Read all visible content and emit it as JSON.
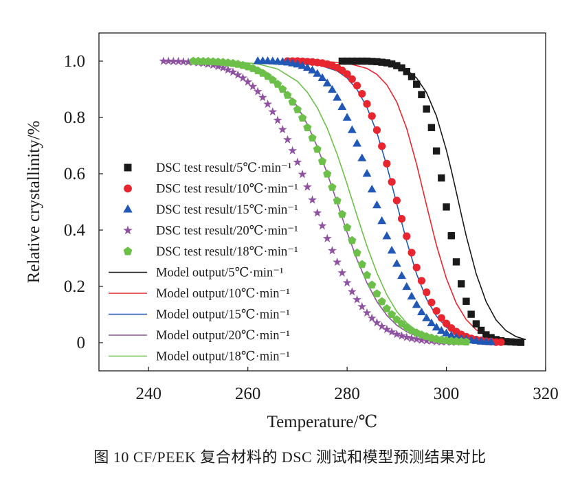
{
  "chart_data": {
    "type": "scatter",
    "xlabel": "Temperature/℃",
    "ylabel": "Relative crystallinity/%",
    "xlim": [
      230,
      320
    ],
    "ylim": [
      -0.1,
      1.1
    ],
    "xticks": [
      240,
      260,
      280,
      300,
      320
    ],
    "yticks": [
      0,
      0.2,
      0.4,
      0.6,
      0.8,
      1.0
    ],
    "ytick_labels": [
      "0",
      "0.2",
      "0.4",
      "0.6",
      "0.8",
      "1.0"
    ],
    "grid": false,
    "legend_position": "center-left",
    "series": [
      {
        "name": "DSC test result/5℃·min⁻¹",
        "kind": "marker",
        "marker": "square",
        "color": "#1a1a1a",
        "x": [
          279,
          280,
          281,
          282,
          283,
          284,
          285,
          286,
          287,
          288,
          289,
          290,
          291,
          292,
          293,
          294,
          295,
          296,
          297,
          298,
          299,
          300,
          301,
          302,
          303,
          304,
          305,
          306,
          307,
          308,
          309,
          310,
          311,
          312,
          313,
          314,
          315
        ],
        "y": [
          1.0,
          1.0,
          1.0,
          1.0,
          1.0,
          1.0,
          0.999,
          0.998,
          0.996,
          0.994,
          0.99,
          0.984,
          0.976,
          0.963,
          0.945,
          0.918,
          0.881,
          0.83,
          0.764,
          0.681,
          0.585,
          0.482,
          0.38,
          0.287,
          0.209,
          0.147,
          0.101,
          0.067,
          0.044,
          0.028,
          0.018,
          0.011,
          0.007,
          0.004,
          0.003,
          0.002,
          0.001
        ]
      },
      {
        "name": "DSC test result/10℃·min⁻¹",
        "kind": "marker",
        "marker": "circle",
        "color": "#e8262f",
        "x": [
          268,
          269,
          270,
          271,
          272,
          273,
          274,
          275,
          276,
          277,
          278,
          279,
          280,
          281,
          282,
          283,
          284,
          285,
          286,
          287,
          288,
          289,
          290,
          291,
          292,
          293,
          294,
          295,
          296,
          297,
          298,
          299,
          300,
          301,
          302,
          303,
          304,
          305,
          306,
          307,
          308,
          309,
          310,
          311
        ],
        "y": [
          1.0,
          1.0,
          1.0,
          0.999,
          0.998,
          0.997,
          0.995,
          0.993,
          0.989,
          0.984,
          0.977,
          0.967,
          0.954,
          0.936,
          0.913,
          0.884,
          0.848,
          0.805,
          0.755,
          0.698,
          0.636,
          0.571,
          0.505,
          0.44,
          0.378,
          0.32,
          0.267,
          0.22,
          0.179,
          0.143,
          0.113,
          0.088,
          0.068,
          0.052,
          0.039,
          0.029,
          0.021,
          0.015,
          0.011,
          0.008,
          0.005,
          0.004,
          0.002,
          0.002
        ]
      },
      {
        "name": "DSC test result/15℃·min⁻¹",
        "kind": "marker",
        "marker": "triangle",
        "color": "#2157b5",
        "x": [
          262,
          263,
          264,
          265,
          266,
          267,
          268,
          269,
          270,
          271,
          272,
          273,
          274,
          275,
          276,
          277,
          278,
          279,
          280,
          281,
          282,
          283,
          284,
          285,
          286,
          287,
          288,
          289,
          290,
          291,
          292,
          293,
          294,
          295,
          296,
          297,
          298,
          299,
          300,
          301,
          302,
          303,
          304,
          305,
          306,
          307,
          308,
          309
        ],
        "y": [
          1.0,
          1.0,
          1.0,
          0.999,
          0.998,
          0.997,
          0.995,
          0.992,
          0.988,
          0.983,
          0.976,
          0.967,
          0.955,
          0.94,
          0.921,
          0.898,
          0.87,
          0.837,
          0.799,
          0.755,
          0.707,
          0.655,
          0.6,
          0.544,
          0.488,
          0.432,
          0.378,
          0.327,
          0.28,
          0.237,
          0.198,
          0.164,
          0.134,
          0.108,
          0.087,
          0.069,
          0.054,
          0.042,
          0.033,
          0.025,
          0.019,
          0.014,
          0.011,
          0.008,
          0.006,
          0.004,
          0.003,
          0.002
        ]
      },
      {
        "name": "DSC test result/20℃·min⁻¹",
        "kind": "marker",
        "marker": "star",
        "color": "#8e52a1",
        "x": [
          243,
          244,
          245,
          246,
          247,
          248,
          249,
          250,
          251,
          252,
          253,
          254,
          255,
          256,
          257,
          258,
          259,
          260,
          261,
          262,
          263,
          264,
          265,
          266,
          267,
          268,
          269,
          270,
          271,
          272,
          273,
          274,
          275,
          276,
          277,
          278,
          279,
          280,
          281,
          282,
          283,
          284,
          285,
          286,
          287,
          288,
          289,
          290,
          291,
          292,
          293,
          294,
          295,
          296,
          297,
          298,
          299,
          300,
          301,
          302
        ],
        "y": [
          1.0,
          1.0,
          0.999,
          0.999,
          0.998,
          0.997,
          0.996,
          0.994,
          0.992,
          0.989,
          0.986,
          0.981,
          0.976,
          0.969,
          0.961,
          0.951,
          0.94,
          0.926,
          0.91,
          0.892,
          0.871,
          0.847,
          0.82,
          0.79,
          0.757,
          0.721,
          0.682,
          0.641,
          0.598,
          0.553,
          0.507,
          0.461,
          0.415,
          0.37,
          0.327,
          0.286,
          0.248,
          0.213,
          0.181,
          0.153,
          0.128,
          0.106,
          0.087,
          0.071,
          0.058,
          0.047,
          0.038,
          0.03,
          0.024,
          0.019,
          0.015,
          0.012,
          0.009,
          0.007,
          0.006,
          0.004,
          0.003,
          0.003,
          0.002,
          0.002
        ]
      },
      {
        "name": "DSC test result/18℃·min⁻¹",
        "kind": "marker",
        "marker": "pentagon",
        "color": "#6cc04a",
        "x": [
          249,
          250,
          251,
          252,
          253,
          254,
          255,
          256,
          257,
          258,
          259,
          260,
          261,
          262,
          263,
          264,
          265,
          266,
          267,
          268,
          269,
          270,
          271,
          272,
          273,
          274,
          275,
          276,
          277,
          278,
          279,
          280,
          281,
          282,
          283,
          284,
          285,
          286,
          287,
          288,
          289,
          290,
          291,
          292,
          293,
          294,
          295,
          296,
          297,
          298,
          299,
          300,
          301,
          302,
          303,
          304
        ],
        "y": [
          1.0,
          1.0,
          0.999,
          0.999,
          0.998,
          0.997,
          0.996,
          0.994,
          0.992,
          0.989,
          0.985,
          0.98,
          0.974,
          0.966,
          0.957,
          0.946,
          0.933,
          0.918,
          0.9,
          0.879,
          0.855,
          0.828,
          0.798,
          0.764,
          0.727,
          0.687,
          0.644,
          0.599,
          0.552,
          0.504,
          0.456,
          0.409,
          0.363,
          0.319,
          0.278,
          0.24,
          0.205,
          0.174,
          0.146,
          0.121,
          0.1,
          0.082,
          0.067,
          0.054,
          0.043,
          0.035,
          0.028,
          0.022,
          0.017,
          0.013,
          0.01,
          0.008,
          0.006,
          0.005,
          0.004,
          0.003
        ]
      },
      {
        "name": "Model output/5℃·min⁻¹",
        "kind": "line",
        "color": "#1a1a1a",
        "x": [
          279,
          282,
          285,
          288,
          290,
          292,
          294,
          296,
          298,
          300,
          301,
          302,
          303,
          304,
          306,
          308,
          310,
          312,
          314,
          316
        ],
        "y": [
          1.0,
          1.0,
          0.998,
          0.993,
          0.985,
          0.969,
          0.94,
          0.888,
          0.805,
          0.684,
          0.612,
          0.535,
          0.456,
          0.379,
          0.245,
          0.146,
          0.081,
          0.043,
          0.022,
          0.011
        ]
      },
      {
        "name": "Model output/10℃·min⁻¹",
        "kind": "line",
        "color": "#e8262f",
        "x": [
          268,
          272,
          276,
          280,
          284,
          286,
          288,
          290,
          292,
          294,
          296,
          298,
          300,
          302,
          304,
          306,
          308,
          311
        ],
        "y": [
          1.0,
          1.0,
          0.998,
          0.993,
          0.974,
          0.953,
          0.916,
          0.855,
          0.761,
          0.634,
          0.488,
          0.346,
          0.228,
          0.14,
          0.082,
          0.046,
          0.025,
          0.01
        ]
      },
      {
        "name": "Model output/15℃·min⁻¹",
        "kind": "line",
        "color": "#2157b5",
        "x": [
          262,
          266,
          270,
          274,
          278,
          280,
          282,
          284,
          286,
          288,
          290,
          292,
          294,
          296,
          298,
          300,
          302,
          304,
          306,
          309
        ],
        "y": [
          1.0,
          0.999,
          0.996,
          0.988,
          0.965,
          0.94,
          0.899,
          0.836,
          0.746,
          0.628,
          0.494,
          0.36,
          0.244,
          0.155,
          0.094,
          0.055,
          0.031,
          0.017,
          0.009,
          0.004
        ]
      },
      {
        "name": "Model output/20℃·min⁻¹",
        "kind": "line",
        "color": "#8e52a1",
        "x": [
          243,
          248,
          252,
          256,
          260,
          264,
          268,
          270,
          272,
          274,
          276,
          278,
          280,
          282,
          284,
          286,
          288,
          290,
          292,
          294,
          296,
          298,
          300,
          302
        ],
        "y": [
          1.0,
          0.999,
          0.997,
          0.99,
          0.975,
          0.945,
          0.885,
          0.838,
          0.775,
          0.695,
          0.601,
          0.497,
          0.392,
          0.295,
          0.212,
          0.146,
          0.097,
          0.062,
          0.039,
          0.024,
          0.015,
          0.009,
          0.005,
          0.003
        ]
      },
      {
        "name": "Model output/18℃·min⁻¹",
        "kind": "line",
        "color": "#6cc04a",
        "x": [
          249,
          254,
          258,
          262,
          266,
          270,
          272,
          274,
          276,
          278,
          280,
          282,
          284,
          286,
          288,
          290,
          292,
          294,
          296,
          298,
          300,
          302,
          304
        ],
        "y": [
          1.0,
          0.999,
          0.997,
          0.99,
          0.972,
          0.928,
          0.889,
          0.834,
          0.761,
          0.669,
          0.563,
          0.451,
          0.343,
          0.248,
          0.17,
          0.111,
          0.07,
          0.043,
          0.026,
          0.015,
          0.009,
          0.005,
          0.003
        ]
      }
    ]
  },
  "caption": "图 10   CF/PEEK 复合材料的 DSC 测试和模型预测结果对比"
}
